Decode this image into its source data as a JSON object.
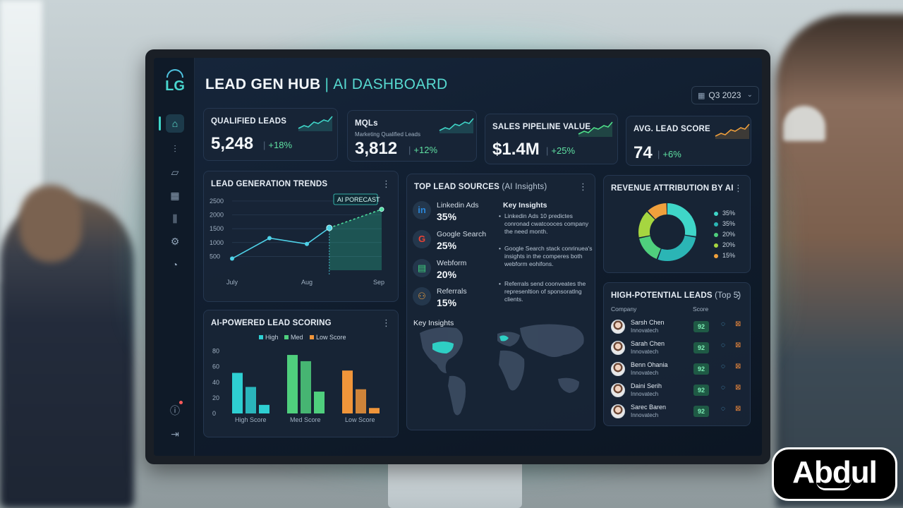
{
  "header": {
    "title_main": "LEAD GEN HUB",
    "title_sep": "|",
    "title_sub": "AI DASHBOARD",
    "date_filter": "Q3 2023"
  },
  "sidebar": {
    "logo": "LG",
    "items": [
      {
        "name": "home-icon",
        "glyph": "⌂",
        "active": true
      },
      {
        "name": "bar-chart-icon",
        "glyph": "⫶"
      },
      {
        "name": "line-chart-icon",
        "glyph": "▱"
      },
      {
        "name": "calendar-icon",
        "glyph": "▦"
      },
      {
        "name": "analytics-icon",
        "glyph": "⫼"
      },
      {
        "name": "gear-icon",
        "glyph": "⚙"
      },
      {
        "name": "gauge-icon",
        "glyph": "◔"
      }
    ],
    "bottom_items": [
      {
        "name": "info-icon",
        "glyph": "ⓘ"
      },
      {
        "name": "logout-icon",
        "glyph": "⇥"
      }
    ]
  },
  "kpis": [
    {
      "title": "QUALIFIED LEADS",
      "subtitle": "",
      "value": "5,248",
      "delta": "+18%",
      "spark_color": "#3fd6c8"
    },
    {
      "title": "MQLs",
      "subtitle": "Marketing Qualified Leads",
      "value": "3,812",
      "delta": "+12%",
      "spark_color": "#3fd6c8"
    },
    {
      "title": "SALES PIPELINE VALUE",
      "subtitle": "",
      "value": "$1.4M",
      "delta": "+25%",
      "spark_color": "#4fe08a"
    },
    {
      "title": "AVG. LEAD SCORE",
      "subtitle": "",
      "value": "74",
      "delta": "+6%",
      "spark_color": "#f0a03c"
    }
  ],
  "trends": {
    "title": "LEAD GENERATION TRENDS",
    "forecast_label": "AI PORECAST",
    "chart_data": {
      "type": "line",
      "title": "LEAD GENERATION TRENDS",
      "x_ticks": [
        "July",
        "Aug",
        "Sep"
      ],
      "y_ticks": [
        2500,
        2000,
        1500,
        1000,
        500
      ],
      "ylim": [
        0,
        2600
      ],
      "series": [
        {
          "values": [
            420,
            1160,
            950,
            1530
          ]
        },
        {
          "name": "AI PORECAST",
          "values": [
            1530,
            2200
          ]
        }
      ],
      "x_positions": [
        0,
        0.25,
        0.5,
        0.65,
        1.0
      ]
    }
  },
  "scoring": {
    "title": "AI-POWERED LEAD SCORING",
    "chart_data": {
      "type": "bar",
      "categories": [
        "High Score",
        "Med Score",
        "Low Score"
      ],
      "legend": [
        "High",
        "Med",
        "Low Score"
      ],
      "colors": [
        "#2ecfd2",
        "#4fcf7d",
        "#f0953a"
      ],
      "y_ticks": [
        80,
        60,
        40,
        20,
        0
      ],
      "ylim": [
        0,
        85
      ],
      "series": [
        {
          "values": [
            52,
            75,
            55
          ]
        },
        {
          "values": [
            34,
            67,
            31
          ]
        },
        {
          "values": [
            11,
            28,
            7
          ]
        }
      ]
    }
  },
  "sources": {
    "title": "TOP LEAD SOURCES",
    "title_suffix": "(AI Insights)",
    "items": [
      {
        "name": "Linkedin Ads",
        "pct": "35%",
        "glyph": "in",
        "color": "#2a86d9"
      },
      {
        "name": "Google Search",
        "pct": "25%",
        "glyph": "G",
        "color": "#ea4335"
      },
      {
        "name": "Webform",
        "pct": "20%",
        "glyph": "▤",
        "color": "#3fcf7e"
      },
      {
        "name": "Referrals",
        "pct": "15%",
        "glyph": "⚇",
        "color": "#f0a03c"
      }
    ],
    "insights_title": "Key Insights",
    "insights": [
      "Linkedin Ads 10 predictes conronad cwatcooces company  the need month.",
      "Google Search stack conrinuea's insights in the comperes both webform eohifons.",
      "Referrals send coonveates the represenltion of sponsoratlng clients."
    ],
    "map_title": "Key Insights"
  },
  "revenue": {
    "title": "REVENUE ATTRIBUTION BY AI",
    "chart_data": {
      "type": "pie",
      "values": [
        35,
        35,
        20,
        20,
        15
      ],
      "labels": [
        "35%",
        "35%",
        "20%",
        "20%",
        "15%"
      ],
      "colors": [
        "#3fd6c8",
        "#2bb5b5",
        "#4fcf7d",
        "#a6d640",
        "#f0a03c"
      ]
    }
  },
  "leads": {
    "title": "HIGH-POTENTIAL LEADS",
    "title_suffix": "(Top 5)",
    "col_company": "Company",
    "col_score": "Score",
    "rows": [
      {
        "name": "Sarsh Chen",
        "company": "Innovatech",
        "score": "92"
      },
      {
        "name": "Sarah Chen",
        "company": "Innovatech",
        "score": "92"
      },
      {
        "name": "Benn Ohania",
        "company": "Innovatech",
        "score": "92"
      },
      {
        "name": "Daini Serih",
        "company": "Innovatech",
        "score": "92"
      },
      {
        "name": "Sarec Baren",
        "company": "Innovatech",
        "score": "92"
      }
    ]
  },
  "watermark": "Abdul"
}
